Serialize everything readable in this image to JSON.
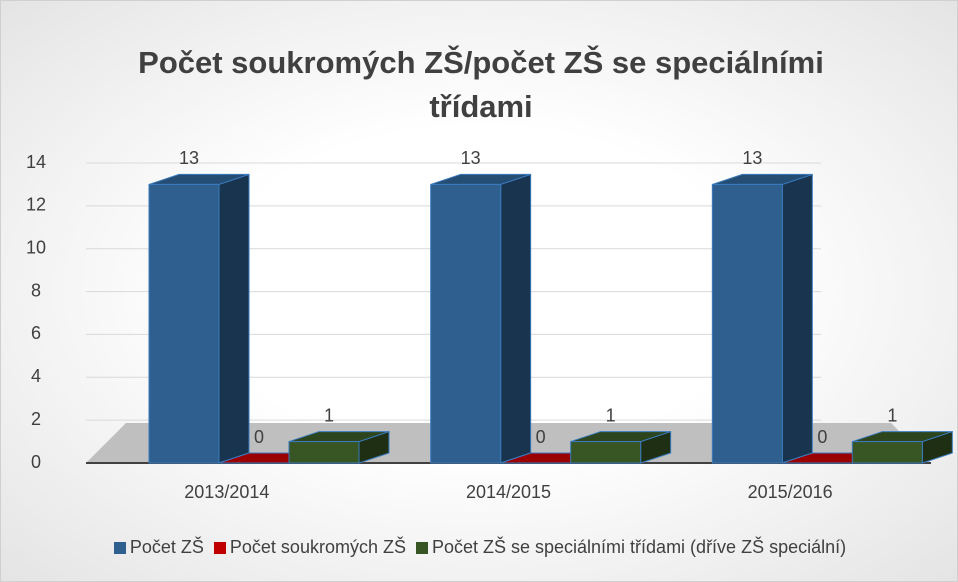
{
  "chart_data": {
    "type": "bar3d",
    "title": "Počet soukromých ZŠ/počet ZŠ se speciálními třídami",
    "categories": [
      "2013/2014",
      "2014/2015",
      "2015/2016"
    ],
    "series": [
      {
        "name": "Počet ZŠ",
        "color": "#2e5f8e",
        "values": [
          13,
          13,
          13
        ]
      },
      {
        "name": "Počet soukromých ZŠ",
        "color": "#c00000",
        "values": [
          0,
          0,
          0
        ]
      },
      {
        "name": "Počet ZŠ se speciálními třídami (dříve ZŠ speciální)",
        "color": "#375623",
        "values": [
          1,
          1,
          1
        ]
      }
    ],
    "ylim": [
      0,
      14
    ],
    "yticks": [
      0,
      2,
      4,
      6,
      8,
      10,
      12,
      14
    ],
    "grid": true,
    "legend": "bottom"
  }
}
